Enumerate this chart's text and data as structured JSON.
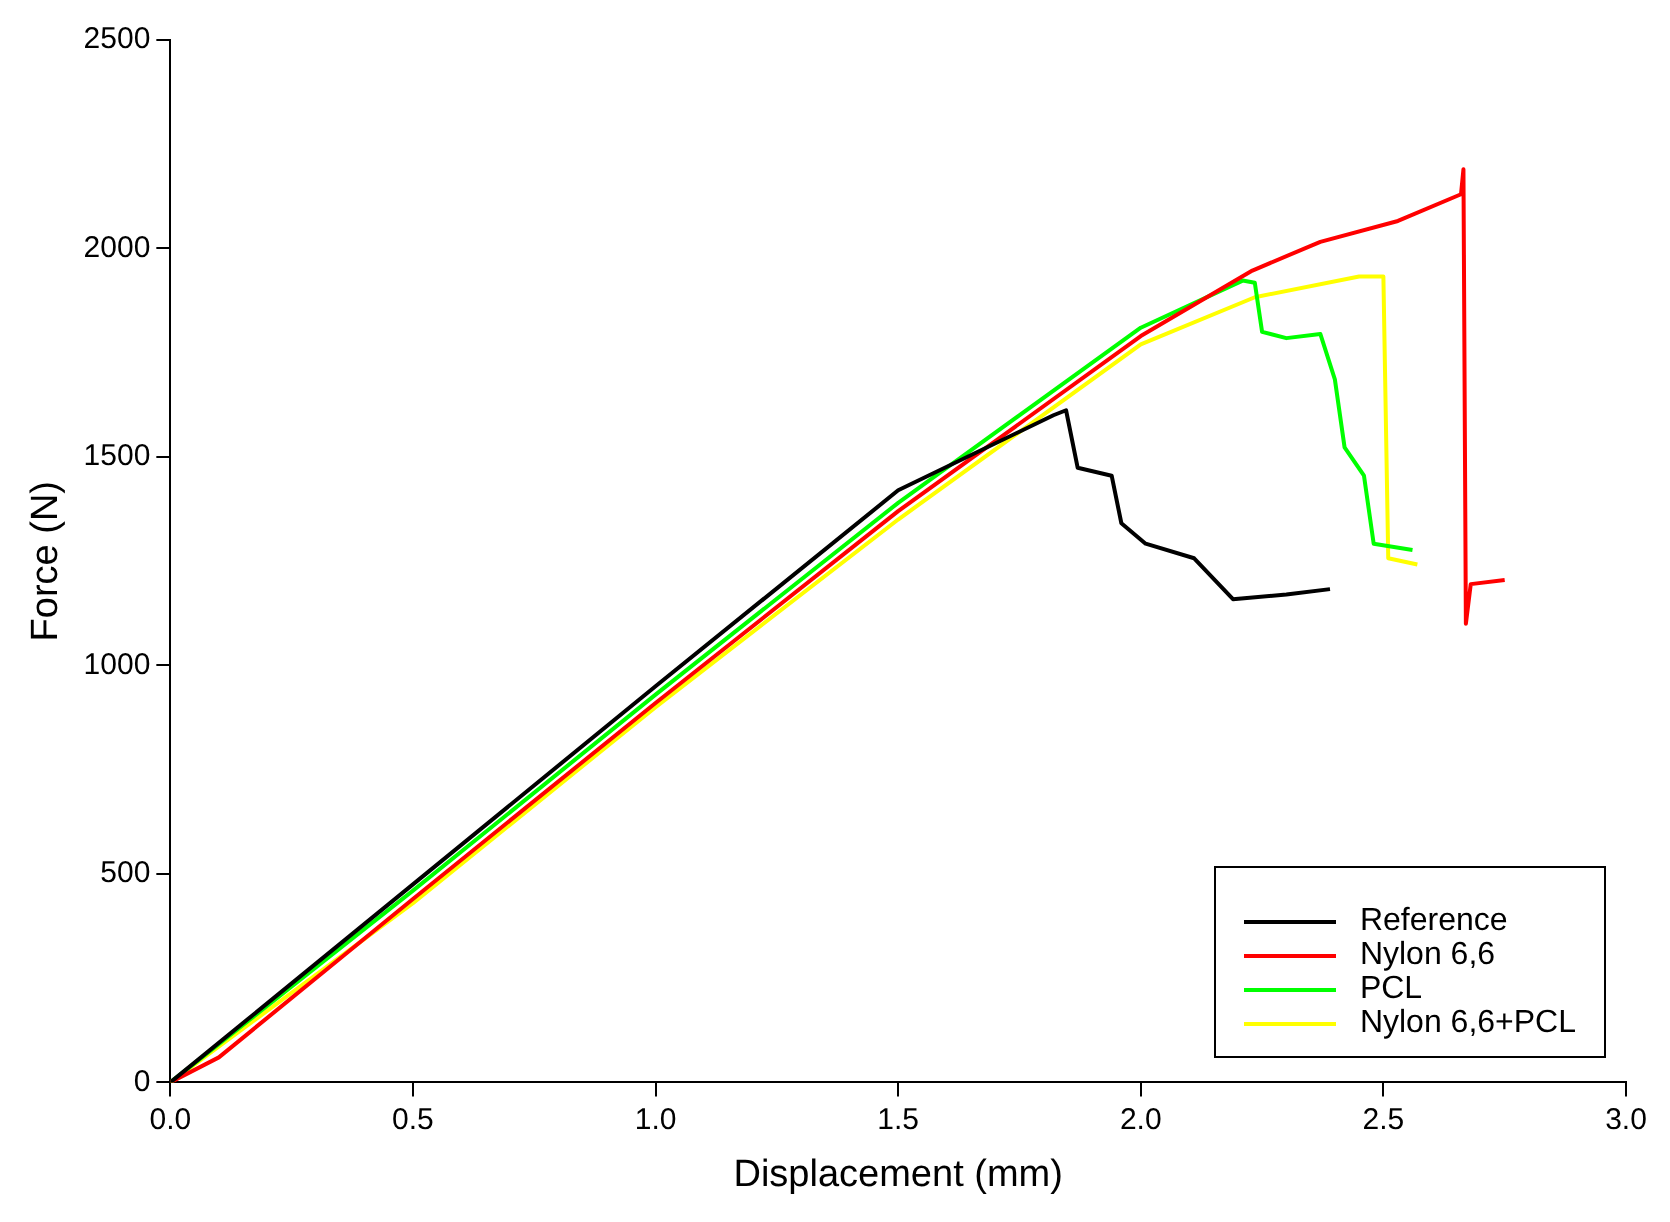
{
  "chart_data": {
    "type": "line",
    "xlabel": "Displacement (mm)",
    "ylabel": "Force (N)",
    "xlim": [
      0,
      3
    ],
    "xticks": [
      {
        "value": 0,
        "label": "0.0"
      },
      {
        "value": 0.5,
        "label": "0.5"
      },
      {
        "value": 1,
        "label": "1.0"
      },
      {
        "value": 1.5,
        "label": "1.5"
      },
      {
        "value": 2,
        "label": "2.0"
      },
      {
        "value": 2.5,
        "label": "2.5"
      },
      {
        "value": 3,
        "label": "3.0"
      }
    ],
    "ylim": [
      0,
      2500
    ],
    "yticks": [
      0,
      500,
      1000,
      1500,
      2000,
      2500
    ],
    "grid": false,
    "legend": "bottom right",
    "marker": "none",
    "line_style": "solid",
    "series": [
      {
        "name": "Reference",
        "color": "#000000",
        "x": [
          0,
          0.5,
          1.0,
          1.5,
          1.82,
          1.846,
          1.87,
          1.94,
          1.96,
          2.01,
          2.11,
          2.19,
          2.3,
          2.39
        ],
        "values": [
          0,
          475,
          950,
          1420,
          1600,
          1612,
          1474,
          1455,
          1341,
          1292,
          1257,
          1159,
          1170,
          1183
        ]
      },
      {
        "name": "Nylon 6,6",
        "color": "#ff0000",
        "x": [
          0,
          0.1,
          0.5,
          1.0,
          1.5,
          2.0,
          2.23,
          2.37,
          2.53,
          2.66,
          2.665,
          2.67,
          2.68,
          2.75
        ],
        "values": [
          0,
          60,
          440,
          910,
          1370,
          1790,
          1947,
          2016,
          2066,
          2130,
          2190,
          1100,
          1195,
          1205
        ]
      },
      {
        "name": "PCL",
        "color": "#00ff00",
        "x": [
          0,
          0.5,
          1.0,
          1.5,
          2.0,
          2.21,
          2.235,
          2.25,
          2.3,
          2.37,
          2.4,
          2.42,
          2.46,
          2.48,
          2.56
        ],
        "values": [
          0,
          460,
          930,
          1390,
          1810,
          1923,
          1918,
          1800,
          1785,
          1795,
          1686,
          1523,
          1455,
          1292,
          1277
        ]
      },
      {
        "name": "Nylon 6,6+PCL",
        "color": "#ffff00",
        "x": [
          0,
          0.5,
          1.0,
          1.5,
          2.0,
          2.235,
          2.45,
          2.5,
          2.51,
          2.57
        ],
        "values": [
          0,
          430,
          900,
          1350,
          1770,
          1883,
          1933,
          1933,
          1257,
          1242
        ]
      }
    ]
  }
}
